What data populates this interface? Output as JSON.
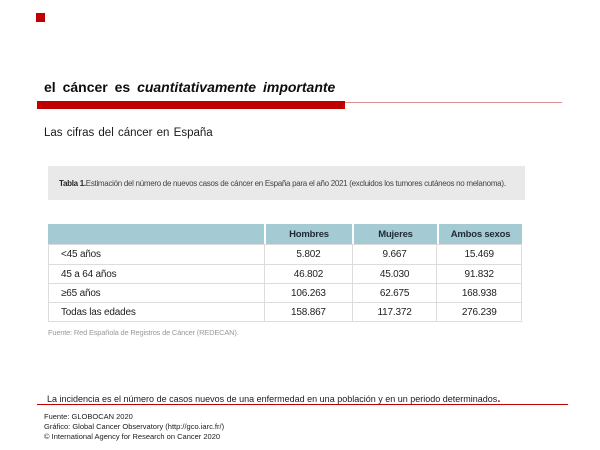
{
  "colors": {
    "accent_red": "#c00000",
    "thin_rule_red": "#d89090",
    "table_header_bg": "#a4cbd4",
    "caption_bg": "#e9e9e9"
  },
  "title": {
    "prefix": "el cáncer es ",
    "italic": "cuantitativamente importante"
  },
  "subtitle": "Las cifras del cáncer en España",
  "table_caption": {
    "label": "Tabla 1.",
    "text": " Estimación del número de nuevos casos de cáncer en España para el año 2021 (excluidos los tumores cutáneos no melanoma)."
  },
  "table": {
    "columns": [
      "",
      "Hombres",
      "Mujeres",
      "Ambos sexos"
    ],
    "rows": [
      {
        "label": "<45 años",
        "values": [
          "5.802",
          "9.667",
          "15.469"
        ]
      },
      {
        "label": "45 a 64 años",
        "values": [
          "46.802",
          "45.030",
          "91.832"
        ]
      },
      {
        "label": "≥65 años",
        "values": [
          "106.263",
          "62.675",
          "168.938"
        ]
      },
      {
        "label": "Todas las edades",
        "values": [
          "158.867",
          "117.372",
          "276.239"
        ]
      }
    ],
    "source": "Fuente: Red Española de Registros de Cáncer (REDECAN)."
  },
  "definition": {
    "text": "La incidencia es el número de casos nuevos de una enfermedad en una población y en un periodo determinados",
    "terminal": "."
  },
  "footer": {
    "lines": [
      "Fuente: GLOBOCAN 2020",
      "Gráfico: Global Cancer Observatory (http://gco.iarc.fr/)",
      "© International Agency for Research on Cancer 2020"
    ]
  }
}
